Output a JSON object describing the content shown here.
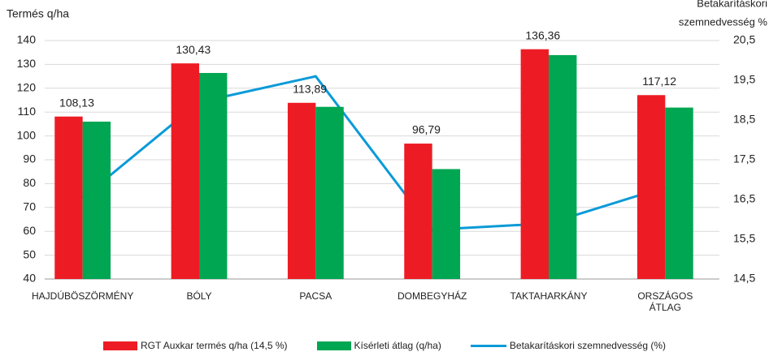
{
  "chart_data": {
    "type": "bar_line",
    "y_label": "Termés q/ha",
    "y2_label": [
      "Betakarításkori",
      "szemnedvesség %"
    ],
    "categories": [
      "HAJDÚBÖSZÖRMÉNY",
      "BÓLY",
      "PACSA",
      "DOMBEGYHÁZ",
      "TAKTAHARKÁNY",
      "ORSZÁGOS ÁTLAG"
    ],
    "series": [
      {
        "name": "RGT Auxkar termés q/ha (14,5 %)",
        "type": "bar",
        "color": "#ed1c24",
        "values": [
          108.13,
          130.43,
          113.89,
          96.79,
          136.36,
          117.12
        ],
        "value_labels": [
          "108,13",
          "130,43",
          "113,89",
          "96,79",
          "136,36",
          "117,12"
        ]
      },
      {
        "name": "Kísérleti átlag (q/ha)",
        "type": "bar",
        "color": "#00a651",
        "values": [
          106,
          126.4,
          112.2,
          86.1,
          133.9,
          111.9
        ]
      },
      {
        "name": "Betakarításkori szemnedvesség (%)",
        "type": "line",
        "axis": "y2",
        "color": "#0a9ad8",
        "values": [
          16.54,
          18.95,
          19.6,
          15.74,
          15.9,
          16.81
        ]
      }
    ],
    "ylim": [
      40,
      140
    ],
    "yticks": [
      40,
      50,
      60,
      70,
      80,
      90,
      100,
      110,
      120,
      130,
      140
    ],
    "y2lim": [
      14.5,
      20.5
    ],
    "y2ticks": [
      {
        "value": 14.5,
        "label": "14,5"
      },
      {
        "value": 15.5,
        "label": "15,5"
      },
      {
        "value": 16.5,
        "label": "16,5"
      },
      {
        "value": 17.5,
        "label": "17,5"
      },
      {
        "value": 18.5,
        "label": "18,5"
      },
      {
        "value": 19.5,
        "label": "19,5"
      },
      {
        "value": 20.5,
        "label": "20,5"
      }
    ],
    "grid": true,
    "legend": "bottom"
  }
}
